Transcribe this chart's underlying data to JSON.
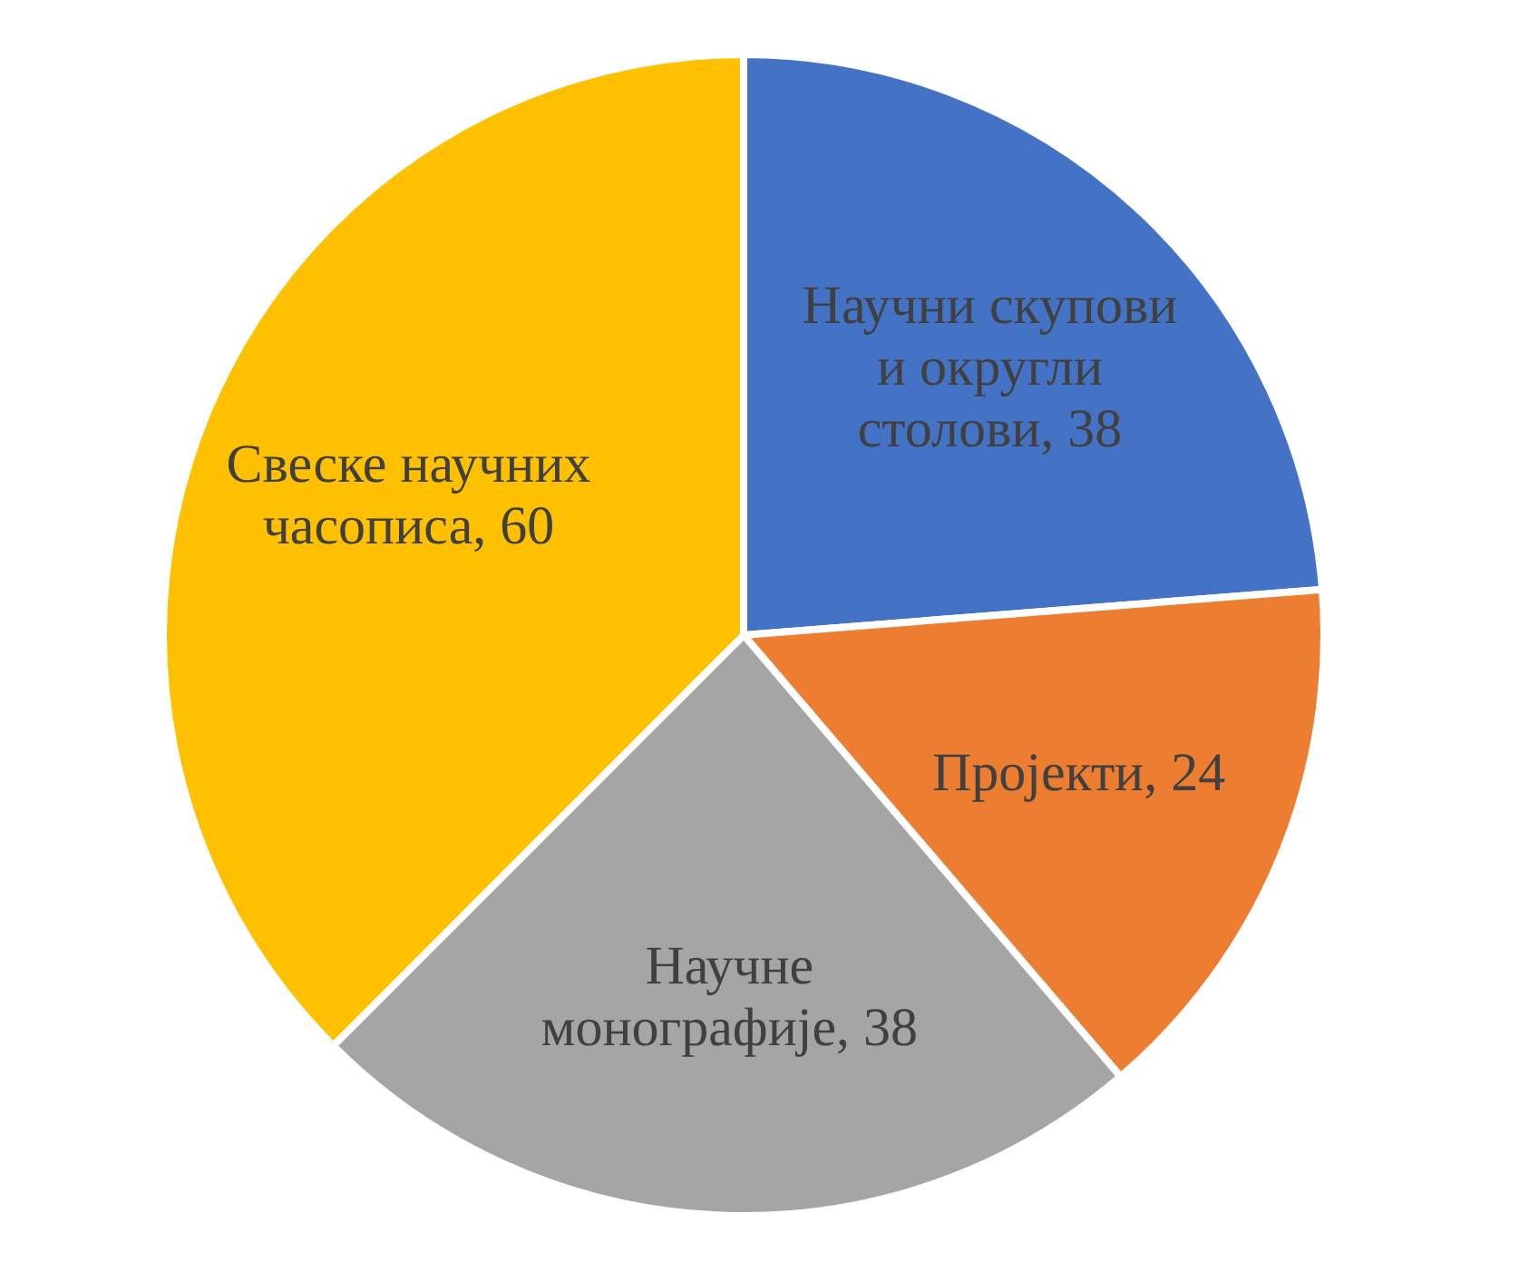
{
  "chart_data": {
    "type": "pie",
    "categories": [
      "Научни скупови и округли столови",
      "Пројекти",
      "Научне монографије",
      "Свеске научних часописа"
    ],
    "values": [
      38,
      24,
      38,
      60
    ],
    "value_labels": [
      ", 38",
      ", 24",
      ", 38",
      ", 60"
    ],
    "colors": [
      "#4472c4",
      "#ed7d31",
      "#a5a5a5",
      "#ffc000"
    ],
    "legend": false
  }
}
